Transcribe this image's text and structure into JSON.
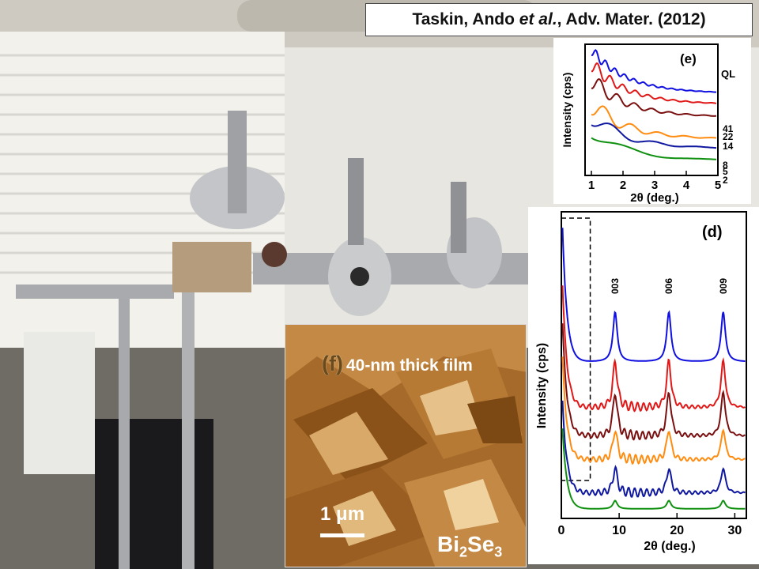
{
  "citation": {
    "authors": "Taskin, Ando",
    "etal": "et al.",
    "journal": ", Adv. Mater. (2012)"
  },
  "photo": {
    "subject": "MBE vacuum chamber apparatus in a laboratory"
  },
  "afm_panel": {
    "letter": "(f)",
    "caption": "40-nm thick film",
    "scale_value": "1",
    "scale_unit": "μm",
    "formula": {
      "a": "Bi",
      "a_sub": "2",
      "b": "Se",
      "b_sub": "3"
    }
  },
  "chart_data": [
    {
      "type": "line",
      "panel_label": "(e)",
      "xlabel": "2θ (deg.)",
      "ylabel": "Intensity (cps)",
      "xlim": [
        0.8,
        5
      ],
      "x_ticks": [
        "1",
        "2",
        "3",
        "4",
        "5"
      ],
      "legend_title": "QL",
      "series": [
        {
          "name": "41",
          "color": "#1010e0"
        },
        {
          "name": "22",
          "color": "#e01818"
        },
        {
          "name": "14",
          "color": "#7a0f10"
        },
        {
          "name": "8",
          "color": "#ff8c10"
        },
        {
          "name": "5",
          "color": "#1018a0"
        },
        {
          "name": "2",
          "color": "#109010"
        }
      ]
    },
    {
      "type": "line",
      "panel_label": "(d)",
      "xlabel": "2θ (deg.)",
      "ylabel": "Intensity (cps)",
      "xlim": [
        0,
        32
      ],
      "x_ticks": [
        "0",
        "10",
        "20",
        "30"
      ],
      "peak_labels": [
        {
          "text": "003",
          "x": 9.3
        },
        {
          "text": "006",
          "x": 18.6
        },
        {
          "text": "009",
          "x": 28.0
        }
      ],
      "series": [
        {
          "name": "41",
          "color": "#1010e0"
        },
        {
          "name": "22",
          "color": "#e01818"
        },
        {
          "name": "14",
          "color": "#7a0f10"
        },
        {
          "name": "8",
          "color": "#ff8c10"
        },
        {
          "name": "5",
          "color": "#1018a0"
        },
        {
          "name": "2",
          "color": "#109010"
        }
      ]
    }
  ]
}
